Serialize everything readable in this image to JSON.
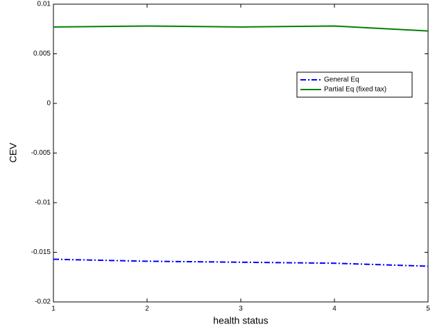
{
  "chart_data": {
    "type": "line",
    "x_label": "health status",
    "y_label": "CEV",
    "x": [
      1,
      2,
      3,
      4,
      5
    ],
    "series": [
      {
        "name": "General Eq",
        "color": "#0000ff",
        "dash": "dash-dot",
        "values": [
          -0.0157,
          -0.0159,
          -0.016,
          -0.0161,
          -0.0164
        ]
      },
      {
        "name": "Partial Eq (fixed tax)",
        "color": "#008000",
        "dash": "solid",
        "values": [
          0.0077,
          0.0078,
          0.0077,
          0.0078,
          0.0073
        ]
      }
    ],
    "xlim": [
      1,
      5
    ],
    "xticks": [
      1,
      2,
      3,
      4,
      5
    ],
    "ylim": [
      -0.02,
      0.01
    ],
    "yticks": [
      -0.02,
      -0.015,
      -0.01,
      -0.005,
      0,
      0.005,
      0.01
    ],
    "grid": false,
    "legend": "upper right"
  }
}
